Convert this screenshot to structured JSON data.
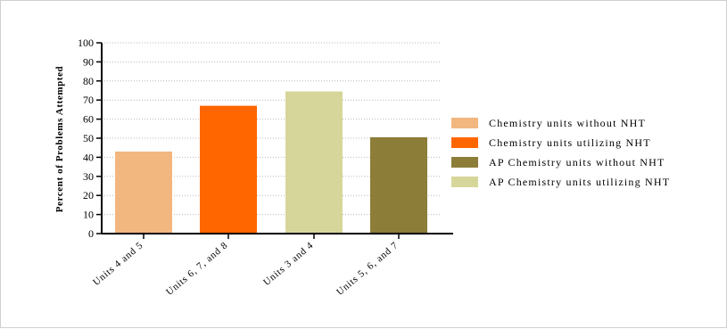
{
  "chart_data": {
    "type": "bar",
    "ylabel": "Percent of Problems Attempted",
    "xlabel": "",
    "ylim": [
      0,
      100
    ],
    "ytick_step": 10,
    "grid": "horizontal-dotted",
    "legend_position": "right",
    "categories": [
      "Units 4 and 5",
      "Units 6, 7, and 8",
      "Units 3 and 4",
      "Units 5, 6, and 7"
    ],
    "values": [
      43,
      67,
      74.5,
      50.5
    ],
    "series": [
      {
        "name": "Chemistry units without NHT",
        "color": "#F2B67F"
      },
      {
        "name": "Chemistry units utilizing NHT",
        "color": "#FF6600"
      },
      {
        "name": "AP Chemistry units without NHT",
        "color": "#8C7D38"
      },
      {
        "name": "AP Chemistry units utilizing NHT",
        "color": "#D6D69A"
      }
    ],
    "bar_colors": [
      "#F2B67F",
      "#FF6600",
      "#D6D69A",
      "#8C7D38"
    ]
  }
}
